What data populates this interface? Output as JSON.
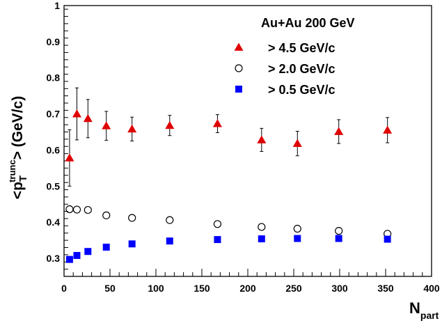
{
  "chart_data": {
    "type": "scatter",
    "title": "",
    "xlabel": "N",
    "xlabel_sub": "part",
    "ylabel": "<p",
    "ylabel_sub": "T",
    "ylabel_sup": "trunc",
    "ylabel_tail": "> (GeV/c)",
    "xlim": [
      0,
      400
    ],
    "ylim": [
      0.25,
      1.0
    ],
    "x_ticks": [
      0,
      50,
      100,
      150,
      200,
      250,
      300,
      350,
      400
    ],
    "x_tick_labels": [
      "0",
      "50",
      "100",
      "150",
      "200",
      "250",
      "300",
      "350",
      "400"
    ],
    "y_ticks": [
      0.3,
      0.4,
      0.5,
      0.6,
      0.7,
      0.8,
      0.9,
      1.0
    ],
    "y_tick_labels": [
      "0.3",
      "0.4",
      "0.5",
      "0.6",
      "0.7",
      "0.8",
      "0.9",
      "1"
    ],
    "grid": false,
    "legend": {
      "placement": "top-right",
      "header": "Au+Au 200 GeV"
    },
    "series": [
      {
        "name": "> 4.5 GeV/c",
        "marker": "triangle-filled",
        "color": "#e00000",
        "points": [
          {
            "x": 6,
            "y": 0.578,
            "err": 0.078
          },
          {
            "x": 14,
            "y": 0.7,
            "err": 0.072
          },
          {
            "x": 26,
            "y": 0.687,
            "err": 0.053
          },
          {
            "x": 46,
            "y": 0.667,
            "err": 0.04
          },
          {
            "x": 74,
            "y": 0.658,
            "err": 0.033
          },
          {
            "x": 115,
            "y": 0.668,
            "err": 0.028
          },
          {
            "x": 167,
            "y": 0.673,
            "err": 0.025
          },
          {
            "x": 215,
            "y": 0.628,
            "err": 0.032
          },
          {
            "x": 254,
            "y": 0.618,
            "err": 0.034
          },
          {
            "x": 299,
            "y": 0.651,
            "err": 0.033
          },
          {
            "x": 352,
            "y": 0.655,
            "err": 0.035
          }
        ]
      },
      {
        "name": "> 2.0 GeV/c",
        "marker": "circle-open",
        "color": "#000000",
        "points": [
          {
            "x": 6,
            "y": 0.436
          },
          {
            "x": 14,
            "y": 0.435
          },
          {
            "x": 26,
            "y": 0.434
          },
          {
            "x": 46,
            "y": 0.419
          },
          {
            "x": 74,
            "y": 0.412
          },
          {
            "x": 115,
            "y": 0.406
          },
          {
            "x": 167,
            "y": 0.395
          },
          {
            "x": 215,
            "y": 0.387
          },
          {
            "x": 254,
            "y": 0.382
          },
          {
            "x": 299,
            "y": 0.376
          },
          {
            "x": 352,
            "y": 0.368
          }
        ]
      },
      {
        "name": "> 0.5 GeV/c",
        "marker": "square-filled",
        "color": "#0000ff",
        "points": [
          {
            "x": 6,
            "y": 0.297
          },
          {
            "x": 14,
            "y": 0.308
          },
          {
            "x": 26,
            "y": 0.319
          },
          {
            "x": 46,
            "y": 0.331
          },
          {
            "x": 74,
            "y": 0.34
          },
          {
            "x": 115,
            "y": 0.348
          },
          {
            "x": 167,
            "y": 0.352
          },
          {
            "x": 215,
            "y": 0.354
          },
          {
            "x": 254,
            "y": 0.355
          },
          {
            "x": 299,
            "y": 0.355
          },
          {
            "x": 352,
            "y": 0.353
          }
        ]
      }
    ]
  }
}
